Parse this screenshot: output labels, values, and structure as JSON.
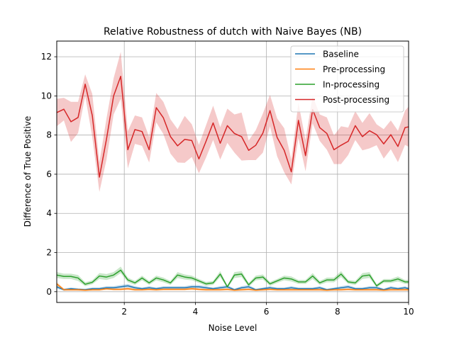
{
  "chart_data": {
    "type": "line",
    "title": "Relative Robustness of dutch with Naive Bayes (NB)",
    "xlabel": "Noise Level",
    "ylabel": "Difference of True Positive",
    "xlim": [
      0.1,
      10
    ],
    "ylim": [
      -0.55,
      12.8
    ],
    "xticks": [
      2,
      4,
      6,
      8,
      10
    ],
    "yticks": [
      0,
      2,
      4,
      6,
      8,
      10,
      12
    ],
    "grid": true,
    "legend_position": "top-right",
    "x": [
      0.1,
      0.3,
      0.5,
      0.7,
      0.9,
      1.1,
      1.3,
      1.5,
      1.7,
      1.9,
      2.1,
      2.3,
      2.5,
      2.7,
      2.9,
      3.1,
      3.3,
      3.5,
      3.7,
      3.9,
      4.1,
      4.3,
      4.5,
      4.7,
      4.9,
      5.1,
      5.3,
      5.5,
      5.7,
      5.9,
      6.1,
      6.3,
      6.5,
      6.7,
      6.9,
      7.1,
      7.3,
      7.5,
      7.7,
      7.9,
      8.1,
      8.3,
      8.5,
      8.7,
      8.9,
      9.1,
      9.3,
      9.5,
      9.7,
      9.9,
      10.0
    ],
    "series": [
      {
        "name": "Baseline",
        "color": "#1f77b4",
        "values": [
          0.25,
          0.1,
          0.15,
          0.12,
          0.1,
          0.15,
          0.15,
          0.2,
          0.2,
          0.25,
          0.3,
          0.2,
          0.15,
          0.2,
          0.15,
          0.2,
          0.2,
          0.2,
          0.2,
          0.25,
          0.25,
          0.2,
          0.15,
          0.2,
          0.25,
          0.1,
          0.2,
          0.25,
          0.1,
          0.15,
          0.2,
          0.15,
          0.15,
          0.2,
          0.15,
          0.15,
          0.15,
          0.2,
          0.1,
          0.15,
          0.2,
          0.25,
          0.15,
          0.15,
          0.2,
          0.2,
          0.1,
          0.2,
          0.15,
          0.2,
          0.15
        ],
        "lower": [
          0.15,
          0.05,
          0.08,
          0.06,
          0.05,
          0.08,
          0.08,
          0.12,
          0.12,
          0.16,
          0.2,
          0.12,
          0.08,
          0.12,
          0.08,
          0.12,
          0.12,
          0.12,
          0.12,
          0.16,
          0.16,
          0.12,
          0.08,
          0.12,
          0.16,
          0.05,
          0.12,
          0.16,
          0.05,
          0.08,
          0.12,
          0.08,
          0.08,
          0.12,
          0.08,
          0.08,
          0.08,
          0.12,
          0.05,
          0.08,
          0.12,
          0.16,
          0.08,
          0.08,
          0.12,
          0.12,
          0.05,
          0.12,
          0.08,
          0.12,
          0.08
        ],
        "upper": [
          0.35,
          0.16,
          0.22,
          0.18,
          0.16,
          0.22,
          0.22,
          0.28,
          0.28,
          0.34,
          0.4,
          0.28,
          0.22,
          0.28,
          0.22,
          0.28,
          0.28,
          0.28,
          0.28,
          0.34,
          0.34,
          0.28,
          0.22,
          0.28,
          0.34,
          0.16,
          0.28,
          0.34,
          0.16,
          0.22,
          0.28,
          0.22,
          0.22,
          0.28,
          0.22,
          0.22,
          0.22,
          0.28,
          0.16,
          0.22,
          0.28,
          0.34,
          0.22,
          0.22,
          0.28,
          0.28,
          0.16,
          0.28,
          0.22,
          0.28,
          0.22
        ]
      },
      {
        "name": "Pre-processing",
        "color": "#ff7f0e",
        "values": [
          0.4,
          0.1,
          0.1,
          0.1,
          0.08,
          0.1,
          0.1,
          0.15,
          0.12,
          0.12,
          0.15,
          0.1,
          0.1,
          0.12,
          0.1,
          0.12,
          0.12,
          0.12,
          0.12,
          0.15,
          0.12,
          0.1,
          0.1,
          0.1,
          0.12,
          0.08,
          0.1,
          0.12,
          0.08,
          0.1,
          0.12,
          0.1,
          0.1,
          0.1,
          0.1,
          0.1,
          0.1,
          0.1,
          0.08,
          0.1,
          0.1,
          0.12,
          0.1,
          0.1,
          0.1,
          0.1,
          0.08,
          0.1,
          0.1,
          0.1,
          0.1
        ],
        "lower": [
          0.3,
          0.04,
          0.04,
          0.04,
          0.03,
          0.04,
          0.04,
          0.08,
          0.06,
          0.06,
          0.08,
          0.04,
          0.04,
          0.06,
          0.04,
          0.06,
          0.06,
          0.06,
          0.06,
          0.08,
          0.06,
          0.04,
          0.04,
          0.04,
          0.06,
          0.03,
          0.04,
          0.06,
          0.03,
          0.04,
          0.06,
          0.04,
          0.04,
          0.04,
          0.04,
          0.04,
          0.04,
          0.04,
          0.03,
          0.04,
          0.04,
          0.06,
          0.04,
          0.04,
          0.04,
          0.04,
          0.03,
          0.04,
          0.04,
          0.04,
          0.04
        ],
        "upper": [
          0.5,
          0.16,
          0.16,
          0.16,
          0.13,
          0.16,
          0.16,
          0.22,
          0.18,
          0.18,
          0.22,
          0.16,
          0.16,
          0.18,
          0.16,
          0.18,
          0.18,
          0.18,
          0.18,
          0.22,
          0.18,
          0.16,
          0.16,
          0.16,
          0.18,
          0.13,
          0.16,
          0.18,
          0.13,
          0.16,
          0.18,
          0.16,
          0.16,
          0.16,
          0.16,
          0.16,
          0.16,
          0.16,
          0.13,
          0.16,
          0.16,
          0.18,
          0.16,
          0.16,
          0.16,
          0.16,
          0.13,
          0.16,
          0.16,
          0.16,
          0.16
        ]
      },
      {
        "name": "In-processing",
        "color": "#2ca02c",
        "values": [
          0.85,
          0.78,
          0.78,
          0.7,
          0.38,
          0.48,
          0.8,
          0.75,
          0.85,
          1.1,
          0.6,
          0.45,
          0.7,
          0.45,
          0.7,
          0.6,
          0.45,
          0.85,
          0.75,
          0.7,
          0.55,
          0.4,
          0.45,
          0.9,
          0.25,
          0.85,
          0.9,
          0.35,
          0.7,
          0.75,
          0.4,
          0.55,
          0.7,
          0.65,
          0.5,
          0.5,
          0.8,
          0.45,
          0.6,
          0.6,
          0.9,
          0.5,
          0.45,
          0.8,
          0.85,
          0.3,
          0.55,
          0.55,
          0.65,
          0.5,
          0.5
        ],
        "lower": [
          0.7,
          0.65,
          0.65,
          0.55,
          0.28,
          0.38,
          0.65,
          0.6,
          0.7,
          0.95,
          0.48,
          0.35,
          0.58,
          0.35,
          0.58,
          0.48,
          0.35,
          0.7,
          0.62,
          0.58,
          0.45,
          0.3,
          0.35,
          0.75,
          0.18,
          0.7,
          0.75,
          0.25,
          0.58,
          0.62,
          0.3,
          0.45,
          0.58,
          0.52,
          0.4,
          0.4,
          0.65,
          0.35,
          0.48,
          0.48,
          0.75,
          0.4,
          0.35,
          0.65,
          0.7,
          0.22,
          0.45,
          0.45,
          0.52,
          0.4,
          0.4
        ],
        "upper": [
          1.0,
          0.92,
          0.92,
          0.85,
          0.48,
          0.58,
          0.95,
          0.9,
          1.0,
          1.28,
          0.72,
          0.55,
          0.82,
          0.55,
          0.82,
          0.72,
          0.55,
          1.0,
          0.88,
          0.82,
          0.65,
          0.5,
          0.55,
          1.05,
          0.32,
          1.0,
          1.05,
          0.45,
          0.82,
          0.88,
          0.5,
          0.65,
          0.82,
          0.78,
          0.6,
          0.6,
          0.95,
          0.55,
          0.72,
          0.72,
          1.05,
          0.6,
          0.55,
          0.95,
          1.0,
          0.38,
          0.65,
          0.65,
          0.78,
          0.6,
          0.6
        ]
      },
      {
        "name": "Post-processing",
        "color": "#d62728",
        "values": [
          9.15,
          9.32,
          8.68,
          8.9,
          10.6,
          9.0,
          5.85,
          7.8,
          10.0,
          11.0,
          7.25,
          8.28,
          8.18,
          7.25,
          9.4,
          8.88,
          7.92,
          7.45,
          7.78,
          7.72,
          6.78,
          7.68,
          8.62,
          7.58,
          8.48,
          8.08,
          7.92,
          7.22,
          7.48,
          8.1,
          9.25,
          7.88,
          7.22,
          6.12,
          8.75,
          6.95,
          9.3,
          8.38,
          8.08,
          7.25,
          7.48,
          7.68,
          8.48,
          7.92,
          8.22,
          8.02,
          7.55,
          8.02,
          7.42,
          8.38,
          8.42
        ],
        "lower": [
          8.45,
          8.75,
          7.65,
          8.1,
          10.0,
          7.9,
          5.1,
          6.75,
          9.05,
          9.85,
          6.3,
          7.55,
          7.45,
          6.6,
          8.65,
          8.05,
          7.05,
          6.6,
          6.58,
          6.88,
          6.05,
          6.85,
          7.75,
          6.75,
          7.6,
          7.1,
          6.7,
          6.72,
          6.72,
          7.1,
          8.45,
          6.92,
          6.1,
          5.48,
          7.85,
          6.15,
          8.6,
          7.7,
          7.25,
          6.52,
          6.52,
          6.98,
          7.75,
          7.22,
          7.32,
          7.48,
          6.8,
          7.28,
          6.62,
          7.5,
          7.4
        ],
        "upper": [
          9.85,
          9.9,
          9.7,
          9.7,
          11.1,
          10.1,
          6.6,
          8.85,
          10.9,
          12.25,
          8.2,
          9.0,
          8.9,
          7.9,
          10.15,
          9.7,
          8.8,
          8.3,
          8.98,
          8.55,
          7.5,
          8.5,
          9.5,
          8.4,
          9.35,
          9.05,
          9.15,
          7.72,
          8.25,
          9.1,
          10.05,
          8.85,
          8.35,
          6.75,
          9.65,
          7.75,
          10.0,
          9.05,
          8.9,
          7.98,
          8.45,
          8.38,
          9.22,
          8.62,
          9.12,
          8.55,
          8.3,
          8.75,
          8.22,
          9.25,
          9.45
        ]
      }
    ]
  }
}
